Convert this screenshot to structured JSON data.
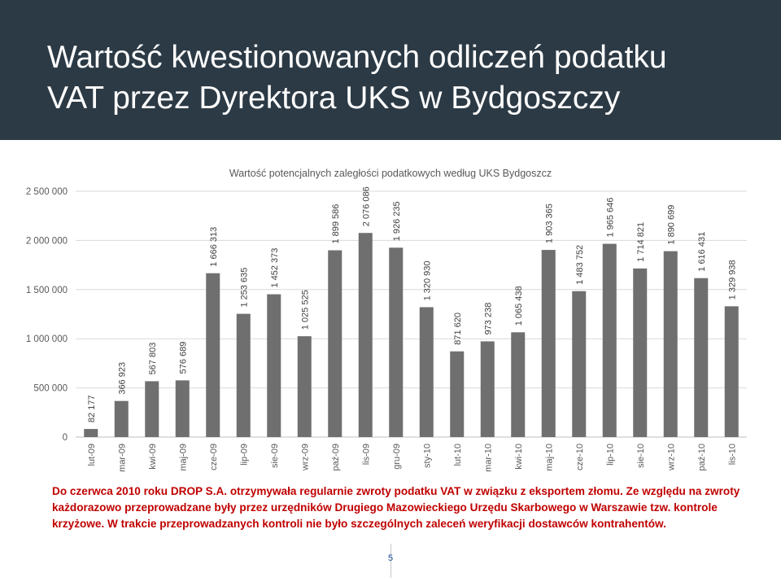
{
  "slide": {
    "title_line1": "Wartość kwestionowanych odliczeń podatku",
    "title_line2": "VAT przez Dyrektora UKS w Bydgoszczy",
    "caption": "Do czerwca 2010 roku DROP S.A. otrzymywała regularnie zwroty podatku VAT w związku z eksportem złomu. Ze względu na zwroty każdorazowo przeprowadzane były przez urzędników Drugiego Mazowieckiego Urzędu Skarbowego w Warszawie tzw. kontrole krzyżowe. W trakcie przeprowadzanych kontroli nie było szczególnych zaleceń weryfikacji dostawców kontrahentów.",
    "page_number": "5"
  },
  "colors": {
    "header_bg": "#2c3a45",
    "bar": "#6f6f6f",
    "caption": "#c00000"
  },
  "chart_data": {
    "type": "bar",
    "title": "Wartość potencjalnych zaległości podatkowych według UKS Bydgoszcz",
    "xlabel": "",
    "ylabel": "",
    "ylim": [
      0,
      2500000
    ],
    "yticks": [
      0,
      500000,
      1000000,
      1500000,
      2000000,
      2500000
    ],
    "ytick_labels": [
      "0",
      "500 000",
      "1 000 000",
      "1 500 000",
      "2 000 000",
      "2 500 000"
    ],
    "grid": true,
    "categories": [
      "lut-09",
      "mar-09",
      "kwi-09",
      "maj-09",
      "cze-09",
      "lip-09",
      "sie-09",
      "wrz-09",
      "paź-09",
      "lis-09",
      "gru-09",
      "sty-10",
      "lut-10",
      "mar-10",
      "kwi-10",
      "maj-10",
      "cze-10",
      "lip-10",
      "sie-10",
      "wrz-10",
      "paź-10",
      "lis-10"
    ],
    "values": [
      82177,
      366923,
      567803,
      576689,
      1666313,
      1253635,
      1452373,
      1025525,
      1899586,
      2076086,
      1926235,
      1320930,
      871620,
      973238,
      1065438,
      1903365,
      1483752,
      1965646,
      1714821,
      1890699,
      1616431,
      1329938
    ],
    "value_labels": [
      "82 177",
      "366 923",
      "567 803",
      "576 689",
      "1 666 313",
      "1 253 635",
      "1 452 373",
      "1 025 525",
      "1 899 586",
      "2 076 086",
      "1 926 235",
      "1 320 930",
      "871 620",
      "973 238",
      "1 065 438",
      "1 903 365",
      "1 483 752",
      "1 965 646",
      "1 714 821",
      "1 890 699",
      "1 616 431",
      "1 329 938"
    ]
  }
}
